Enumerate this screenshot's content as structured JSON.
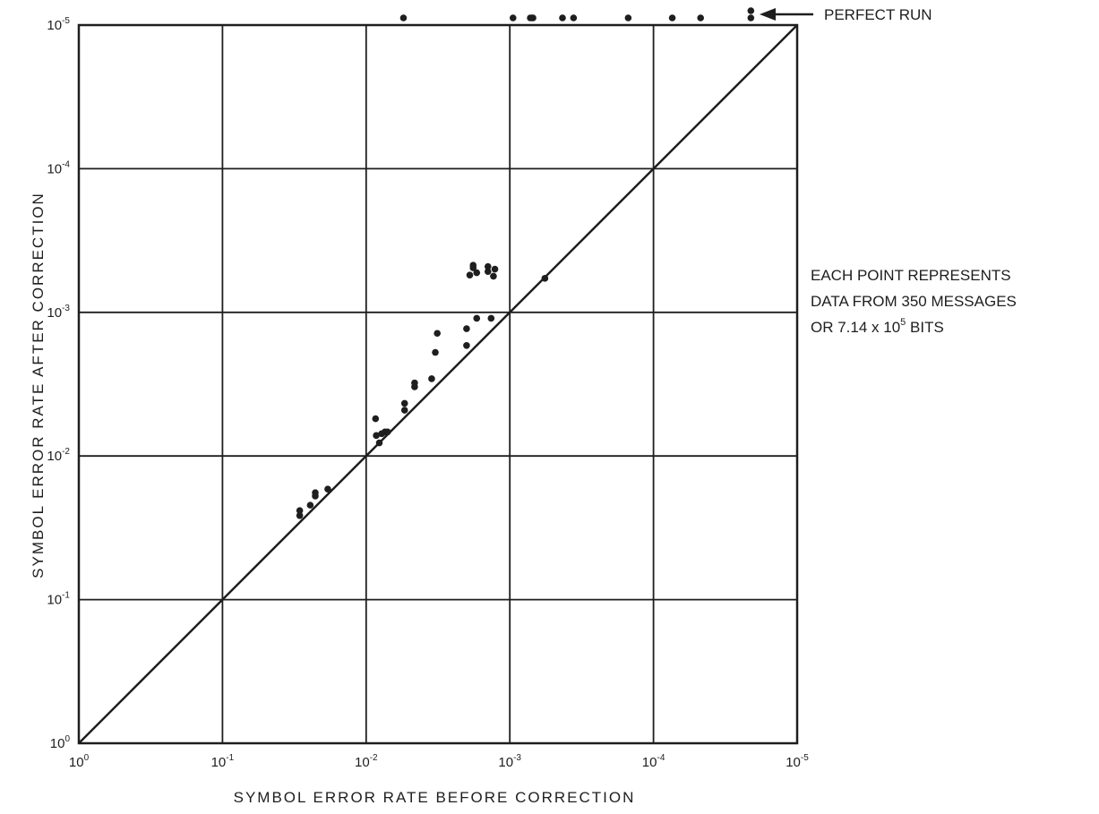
{
  "chart_data": {
    "type": "scatter",
    "title": "",
    "xlabel": "SYMBOL ERROR RATE BEFORE CORRECTION",
    "ylabel": "SYMBOL ERROR RATE AFTER CORRECTION",
    "x_scale": "log-reversed",
    "y_scale": "log-inverted",
    "xlim": [
      1,
      1e-05
    ],
    "ylim": [
      1,
      1e-05
    ],
    "grid": true,
    "x_ticks": [
      {
        "base": "10",
        "exp": "0"
      },
      {
        "base": "10",
        "exp": "-1"
      },
      {
        "base": "10",
        "exp": "-2"
      },
      {
        "base": "10",
        "exp": "-3"
      },
      {
        "base": "10",
        "exp": "-4"
      },
      {
        "base": "10",
        "exp": "-5"
      }
    ],
    "y_ticks": [
      {
        "base": "10",
        "exp": "0"
      },
      {
        "base": "10",
        "exp": "-1"
      },
      {
        "base": "10",
        "exp": "-2"
      },
      {
        "base": "10",
        "exp": "-3"
      },
      {
        "base": "10",
        "exp": "-4"
      },
      {
        "base": "10",
        "exp": "-5"
      }
    ],
    "reference_line": {
      "from": [
        1,
        1
      ],
      "to": [
        1e-05,
        1e-05
      ]
    },
    "series": [
      {
        "x": [
          0.029,
          0.029,
          0.0245,
          0.0226,
          0.0226,
          0.0185,
          0.0086,
          0.0085,
          0.0081,
          0.0078,
          0.0074,
          0.0071,
          0.0054,
          0.0054,
          0.0046,
          0.0046,
          0.0035,
          0.0033,
          0.0032,
          0.002,
          0.002,
          0.0019,
          0.0018,
          0.0018,
          0.0017,
          0.0017,
          0.00142,
          0.00142,
          0.00057,
          0.00135,
          0.0013,
          0.00127
        ],
        "y": [
          0.024,
          0.026,
          0.022,
          0.018,
          0.019,
          0.017,
          0.0055,
          0.0072,
          0.0081,
          0.007,
          0.0068,
          0.0068,
          0.0043,
          0.0048,
          0.0031,
          0.0033,
          0.0029,
          0.0019,
          0.0014,
          0.0017,
          0.0013,
          0.00055,
          0.00047,
          0.00049,
          0.0011,
          0.00053,
          0.00048,
          0.00052,
          0.00058,
          0.0011,
          0.00056,
          0.0005
        ]
      }
    ],
    "perfect_run": {
      "label": "PERFECT RUN",
      "x": [
        0.0055,
        0.00095,
        0.00072,
        0.0007,
        0.00069,
        0.00043,
        0.00036,
        0.00015,
        7.4e-05,
        4.7e-05,
        2.1e-05,
        2.1e-05
      ]
    },
    "note": {
      "line1": "EACH POINT REPRESENTS",
      "line2": "DATA FROM 350 MESSAGES",
      "line3_pre": "OR 7.14 x 10",
      "line3_exp": "5",
      "line3_post": " BITS"
    }
  }
}
